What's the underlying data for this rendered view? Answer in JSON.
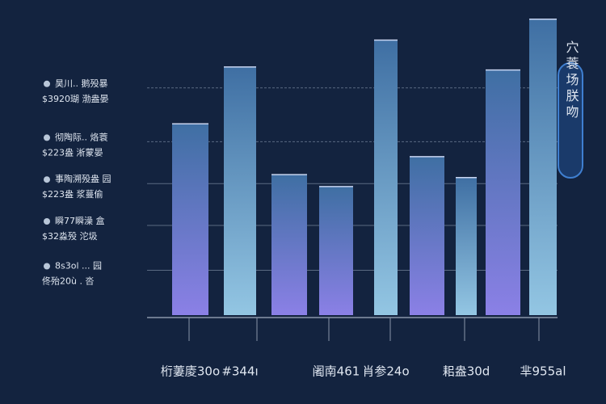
{
  "chart_data": {
    "type": "bar",
    "categories": [
      "桁萋庱30o",
      "#344ı",
      null,
      "阇南461",
      "肖参24o",
      null,
      "耜盎30d",
      null,
      "芈955al"
    ],
    "values": [
      64,
      83,
      47,
      43,
      92,
      53,
      46,
      82,
      99
    ],
    "top_color": "#3f6fa3",
    "colors": [
      "#8b80e6",
      "#93c6e3",
      "#8b80e6",
      "#8b80e6",
      "#93c6e3",
      "#8b80e6",
      "#93c6e3",
      "#8b80e6",
      "#93c6e3"
    ],
    "ylim": [
      0,
      100
    ],
    "yticks": [
      {
        "value": 76,
        "label": "昊川.. 鹅殁暴"
      },
      {
        "value": 58,
        "label": "彻陶际.. 烙蓑"
      },
      {
        "value": 44,
        "label": "事陶溯殁盎 园"
      },
      {
        "value": 30,
        "label": "瞬77瞬澡 盒"
      },
      {
        "value": 15,
        "label": "8s3ol ... 园"
      }
    ],
    "ytick_notes": [
      "$3920瑚 渤盎晏",
      "$223盎 淅蒙晏",
      "$223盎 浆蔓偷",
      "$32淼殁 沱圾",
      "佟殆20ù . 呇"
    ],
    "grid": true,
    "legend": "穴蓑场朕吻"
  }
}
